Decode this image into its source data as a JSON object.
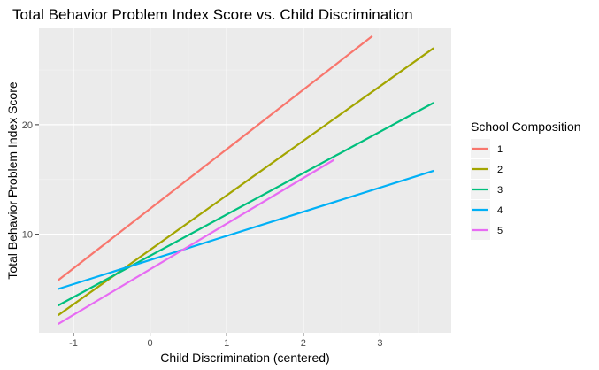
{
  "chart_data": {
    "type": "line",
    "title": "Total Behavior Problem Index Score vs. Child Discrimination",
    "xlabel": "Child Discrimination (centered)",
    "ylabel": "Total Behavior Problem Index Score",
    "xlim": [
      -1.45,
      3.93
    ],
    "ylim": [
      1.0,
      28.8
    ],
    "x_ticks": [
      -1,
      0,
      1,
      2,
      3
    ],
    "y_ticks": [
      10,
      20
    ],
    "grid": true,
    "legend": {
      "title": "School Composition",
      "position": "right"
    },
    "series": [
      {
        "name": "1",
        "color": "#F8766D",
        "x": [
          -1.2,
          2.9
        ],
        "y": [
          5.8,
          28.1
        ]
      },
      {
        "name": "2",
        "color": "#A3A500",
        "x": [
          -1.2,
          3.7
        ],
        "y": [
          2.6,
          27.0
        ]
      },
      {
        "name": "3",
        "color": "#00BF7D",
        "x": [
          -1.2,
          3.7
        ],
        "y": [
          3.5,
          22.0
        ]
      },
      {
        "name": "4",
        "color": "#00B0F6",
        "x": [
          -1.2,
          3.7
        ],
        "y": [
          5.0,
          15.8
        ]
      },
      {
        "name": "5",
        "color": "#E76BF3",
        "x": [
          -1.2,
          2.4
        ],
        "y": [
          1.8,
          16.8
        ]
      }
    ]
  }
}
